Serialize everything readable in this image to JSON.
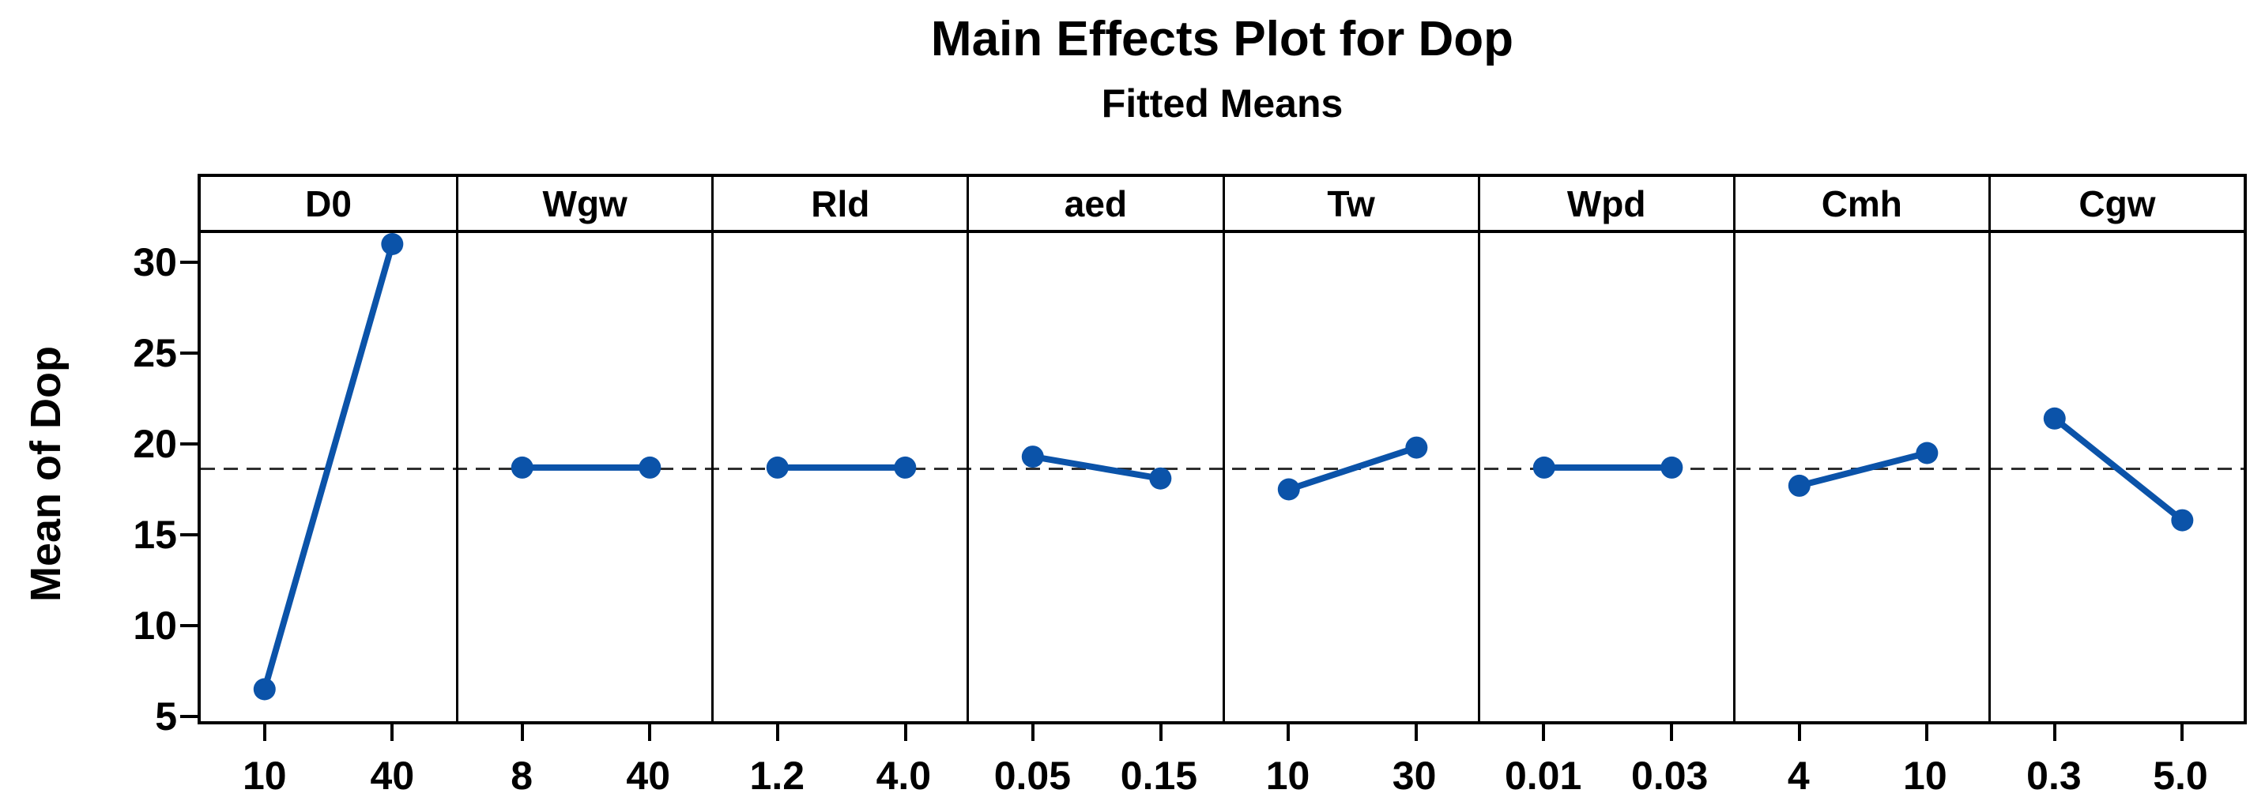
{
  "title": "Main Effects Plot for Dop",
  "subtitle": "Fitted Means",
  "colors": {
    "series": "#0B53A9",
    "reference_line": "#2E2E2E",
    "axis": "#000000",
    "background": "#FFFFFF"
  },
  "chart_data": {
    "type": "line",
    "title": "Main Effects Plot for Dop",
    "subtitle": "Fitted Means",
    "ylabel": "Mean of Dop",
    "yticks": [
      30,
      25,
      20,
      15,
      10,
      5
    ],
    "ylim": [
      4.6,
      31.8
    ],
    "grid": false,
    "legend": "none",
    "reference_mean": 18.65,
    "panels": [
      {
        "factor": "D0",
        "levels": [
          "10",
          "40"
        ],
        "means": [
          6.5,
          31.0
        ]
      },
      {
        "factor": "Wgw",
        "levels": [
          "8",
          "40"
        ],
        "means": [
          18.7,
          18.7
        ]
      },
      {
        "factor": "Rld",
        "levels": [
          "1.2",
          "4.0"
        ],
        "means": [
          18.7,
          18.7
        ]
      },
      {
        "factor": "aed",
        "levels": [
          "0.05",
          "0.15"
        ],
        "means": [
          19.3,
          18.1
        ]
      },
      {
        "factor": "Tw",
        "levels": [
          "10",
          "30"
        ],
        "means": [
          17.5,
          19.8
        ]
      },
      {
        "factor": "Wpd",
        "levels": [
          "0.01",
          "0.03"
        ],
        "means": [
          18.7,
          18.7
        ]
      },
      {
        "factor": "Cmh",
        "levels": [
          "4",
          "10"
        ],
        "means": [
          17.7,
          19.5
        ]
      },
      {
        "factor": "Cgw",
        "levels": [
          "0.3",
          "5.0"
        ],
        "means": [
          21.4,
          15.8
        ]
      }
    ]
  }
}
